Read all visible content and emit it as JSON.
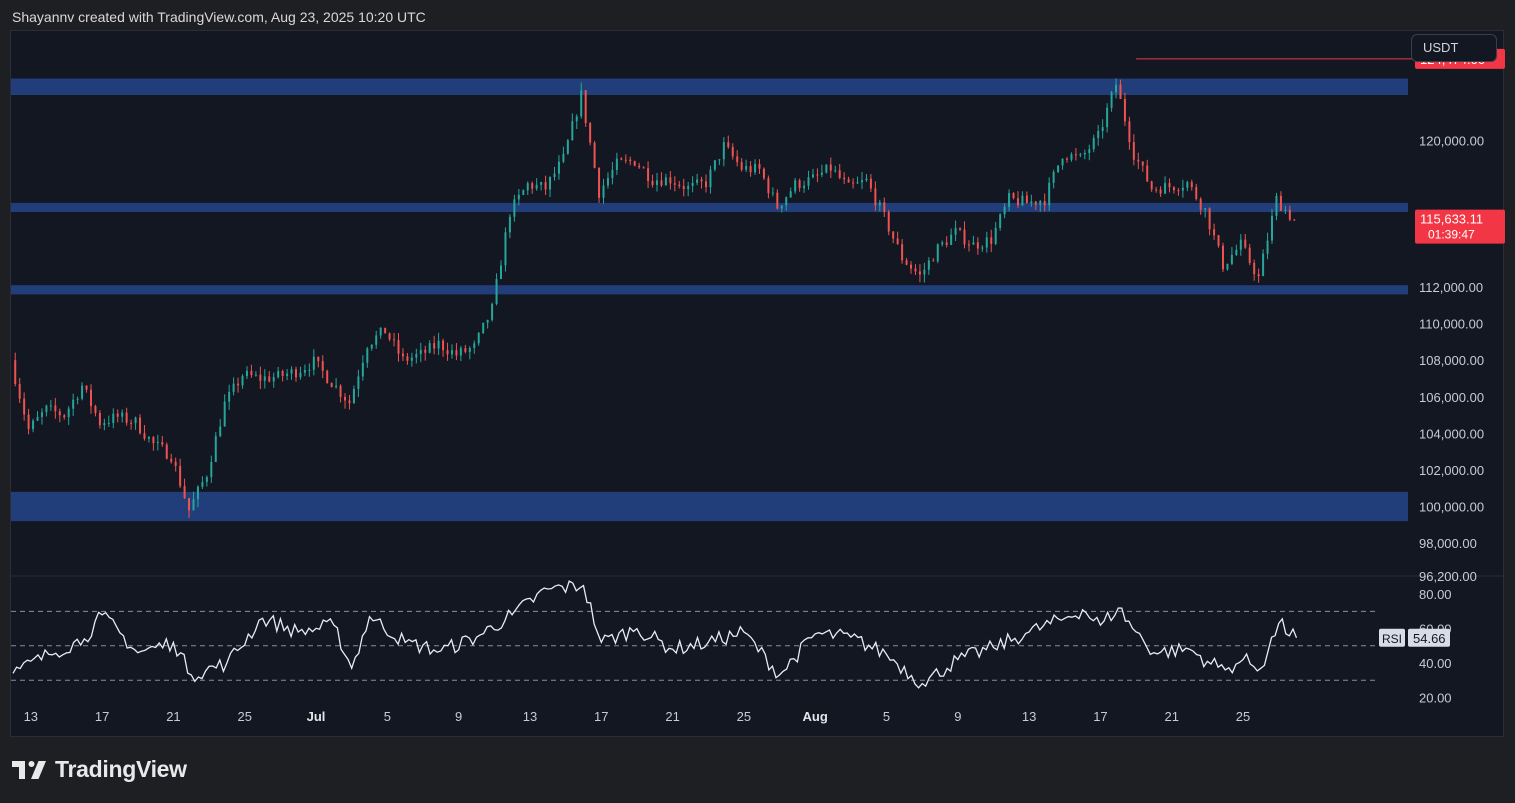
{
  "header": {
    "attribution": "Shayannv created with TradingView.com, Aug 23, 2025 10:20 UTC"
  },
  "currency": "USDT",
  "brand": {
    "name": "TradingView",
    "icon": "tradingview-logo-icon"
  },
  "colors": {
    "background": "#131722",
    "up": "#26a69a",
    "down": "#ef5350",
    "zone": "#23407f",
    "rsi_line": "#e6ecf5",
    "high_marker": "#f23645"
  },
  "chart_data": [
    {
      "type": "candlestick",
      "title": "",
      "xlabel": "",
      "ylabel": "",
      "x_ticks": [
        "13",
        "17",
        "21",
        "25",
        "Jul",
        "5",
        "9",
        "13",
        "17",
        "21",
        "25",
        "Aug",
        "5",
        "9",
        "13",
        "17",
        "21",
        "25"
      ],
      "x_range": [
        "2025-06-12",
        "2025-08-26"
      ],
      "y_ticks": [
        "96,200.00",
        "98,000.00",
        "100,000.00",
        "102,000.00",
        "104,000.00",
        "106,000.00",
        "108,000.00",
        "110,000.00",
        "112,000.00",
        "120,000.00"
      ],
      "price_levels": [
        96200,
        98000,
        100000,
        102000,
        104000,
        106000,
        108000,
        110000,
        112000,
        120000
      ],
      "ylim": [
        96200,
        126000
      ],
      "support_resistance_zones": [
        {
          "low": 122500,
          "high": 123400
        },
        {
          "low": 116100,
          "high": 116600
        },
        {
          "low": 111600,
          "high": 112100
        },
        {
          "low": 99200,
          "high": 100800
        }
      ],
      "high_label": "124,474.00",
      "high_value": 124474,
      "high_date": "2025-08-14",
      "last_price_label": "115,633.11",
      "last_price": 115633.11,
      "countdown": "01:39:47",
      "path": [
        [
          "2025-06-12",
          108000
        ],
        [
          "2025-06-13",
          104200
        ],
        [
          "2025-06-14",
          105300
        ],
        [
          "2025-06-15",
          105000
        ],
        [
          "2025-06-16",
          106600
        ],
        [
          "2025-06-17",
          104600
        ],
        [
          "2025-06-18",
          104900
        ],
        [
          "2025-06-19",
          104600
        ],
        [
          "2025-06-20",
          103400
        ],
        [
          "2025-06-21",
          102800
        ],
        [
          "2025-06-22",
          99800
        ],
        [
          "2025-06-23",
          101800
        ],
        [
          "2025-06-24",
          105600
        ],
        [
          "2025-06-25",
          107200
        ],
        [
          "2025-06-26",
          107000
        ],
        [
          "2025-06-27",
          107100
        ],
        [
          "2025-06-28",
          107400
        ],
        [
          "2025-06-29",
          107900
        ],
        [
          "2025-06-30",
          106800
        ],
        [
          "2025-07-01",
          105700
        ],
        [
          "2025-07-02",
          108900
        ],
        [
          "2025-07-03",
          109600
        ],
        [
          "2025-07-04",
          108000
        ],
        [
          "2025-07-05",
          108300
        ],
        [
          "2025-07-06",
          108900
        ],
        [
          "2025-07-07",
          108300
        ],
        [
          "2025-07-08",
          108700
        ],
        [
          "2025-07-09",
          110800
        ],
        [
          "2025-07-10",
          116100
        ],
        [
          "2025-07-11",
          117600
        ],
        [
          "2025-07-12",
          117400
        ],
        [
          "2025-07-13",
          119000
        ],
        [
          "2025-07-14",
          122500
        ],
        [
          "2025-07-15",
          117200
        ],
        [
          "2025-07-16",
          118700
        ],
        [
          "2025-07-17",
          118900
        ],
        [
          "2025-07-18",
          117900
        ],
        [
          "2025-07-19",
          117900
        ],
        [
          "2025-07-20",
          117400
        ],
        [
          "2025-07-21",
          117700
        ],
        [
          "2025-07-22",
          119700
        ],
        [
          "2025-07-23",
          118500
        ],
        [
          "2025-07-24",
          118400
        ],
        [
          "2025-07-25",
          116400
        ],
        [
          "2025-07-26",
          117600
        ],
        [
          "2025-07-27",
          117900
        ],
        [
          "2025-07-28",
          118500
        ],
        [
          "2025-07-29",
          117400
        ],
        [
          "2025-07-30",
          117800
        ],
        [
          "2025-07-31",
          115800
        ],
        [
          "2025-08-01",
          113600
        ],
        [
          "2025-08-02",
          112600
        ],
        [
          "2025-08-03",
          114100
        ],
        [
          "2025-08-04",
          115000
        ],
        [
          "2025-08-05",
          114300
        ],
        [
          "2025-08-06",
          114600
        ],
        [
          "2025-08-07",
          116800
        ],
        [
          "2025-08-08",
          116600
        ],
        [
          "2025-08-09",
          116800
        ],
        [
          "2025-08-10",
          119300
        ],
        [
          "2025-08-11",
          119000
        ],
        [
          "2025-08-12",
          120200
        ],
        [
          "2025-08-13",
          123100
        ],
        [
          "2025-08-14",
          119300
        ],
        [
          "2025-08-15",
          117400
        ],
        [
          "2025-08-16",
          117500
        ],
        [
          "2025-08-17",
          117700
        ],
        [
          "2025-08-18",
          116200
        ],
        [
          "2025-08-19",
          113200
        ],
        [
          "2025-08-20",
          114300
        ],
        [
          "2025-08-21",
          112500
        ],
        [
          "2025-08-22",
          116800
        ],
        [
          "2025-08-23",
          115633
        ]
      ]
    },
    {
      "type": "line",
      "title": "",
      "series_label": "RSI",
      "value_label": "54.66",
      "value": 54.66,
      "ylim": [
        15,
        90
      ],
      "y_ticks": [
        "20.00",
        "40.00",
        "60.00",
        "80.00"
      ],
      "levels": [
        20,
        40,
        60,
        80
      ],
      "dashed_levels": [
        30,
        50,
        70
      ],
      "path": [
        [
          "2025-06-12",
          34
        ],
        [
          "2025-06-14",
          45
        ],
        [
          "2025-06-16",
          54
        ],
        [
          "2025-06-17",
          68
        ],
        [
          "2025-06-19",
          46
        ],
        [
          "2025-06-21",
          52
        ],
        [
          "2025-06-22",
          33
        ],
        [
          "2025-06-24",
          40
        ],
        [
          "2025-06-26",
          66
        ],
        [
          "2025-06-28",
          58
        ],
        [
          "2025-06-30",
          62
        ],
        [
          "2025-07-01",
          37
        ],
        [
          "2025-07-02",
          67
        ],
        [
          "2025-07-04",
          52
        ],
        [
          "2025-07-06",
          47
        ],
        [
          "2025-07-08",
          55
        ],
        [
          "2025-07-10",
          68
        ],
        [
          "2025-07-12",
          83
        ],
        [
          "2025-07-14",
          85
        ],
        [
          "2025-07-15",
          52
        ],
        [
          "2025-07-17",
          60
        ],
        [
          "2025-07-19",
          48
        ],
        [
          "2025-07-21",
          52
        ],
        [
          "2025-07-23",
          58
        ],
        [
          "2025-07-25",
          33
        ],
        [
          "2025-07-27",
          57
        ],
        [
          "2025-07-29",
          55
        ],
        [
          "2025-07-31",
          45
        ],
        [
          "2025-08-02",
          28
        ],
        [
          "2025-08-04",
          42
        ],
        [
          "2025-08-06",
          49
        ],
        [
          "2025-08-08",
          58
        ],
        [
          "2025-08-10",
          66
        ],
        [
          "2025-08-11",
          71
        ],
        [
          "2025-08-12",
          62
        ],
        [
          "2025-08-13",
          72
        ],
        [
          "2025-08-14",
          58
        ],
        [
          "2025-08-15",
          46
        ],
        [
          "2025-08-17",
          48
        ],
        [
          "2025-08-18",
          41
        ],
        [
          "2025-08-19",
          36
        ],
        [
          "2025-08-20",
          42
        ],
        [
          "2025-08-21",
          37
        ],
        [
          "2025-08-22",
          63
        ],
        [
          "2025-08-23",
          54.66
        ]
      ]
    }
  ]
}
